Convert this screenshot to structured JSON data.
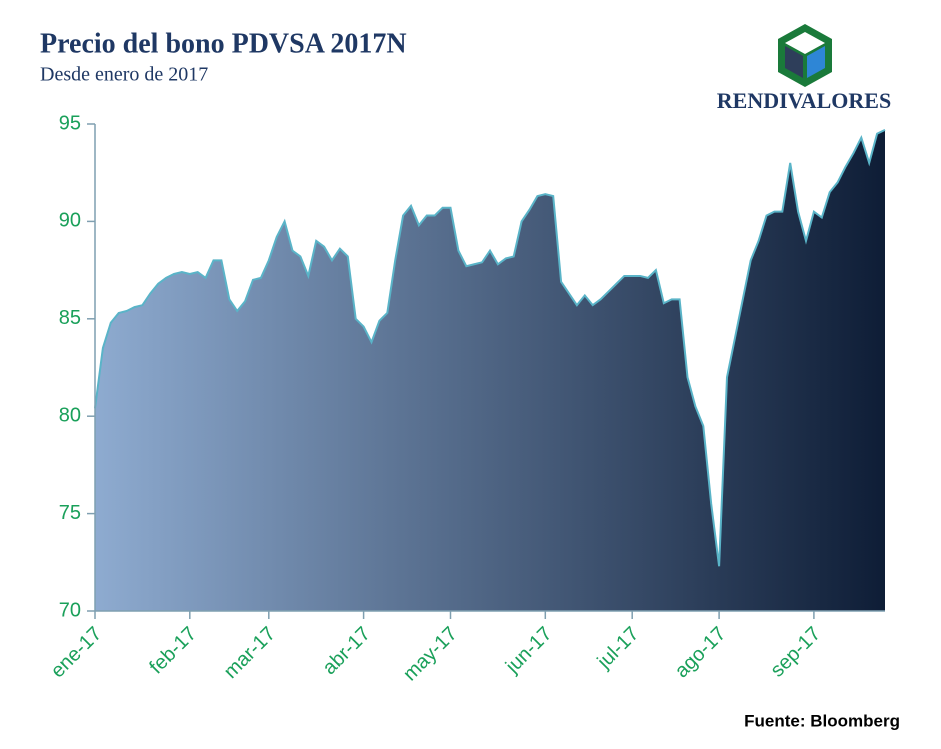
{
  "chart_data": {
    "type": "area",
    "title": "Precio del bono PDVSA 2017N",
    "subtitle": "Desde enero de 2017",
    "brand": "RENDIVALORES",
    "source": "Fuente: Bloomberg",
    "categories": [
      "ene-17",
      null,
      null,
      null,
      null,
      null,
      null,
      null,
      null,
      null,
      null,
      null,
      "feb-17",
      null,
      null,
      null,
      null,
      null,
      null,
      null,
      null,
      null,
      "mar-17",
      null,
      null,
      null,
      null,
      null,
      null,
      null,
      null,
      null,
      null,
      null,
      "abr-17",
      null,
      null,
      null,
      null,
      null,
      null,
      null,
      null,
      null,
      null,
      "may-17",
      null,
      null,
      null,
      null,
      null,
      null,
      null,
      null,
      null,
      null,
      null,
      "jun-17",
      null,
      null,
      null,
      null,
      null,
      null,
      null,
      null,
      null,
      null,
      "jul-17",
      null,
      null,
      null,
      null,
      null,
      null,
      null,
      null,
      null,
      null,
      "ago-17",
      null,
      null,
      null,
      null,
      null,
      null,
      null,
      null,
      null,
      null,
      null,
      "sep-17",
      null,
      null,
      null,
      null,
      null,
      null,
      null,
      null,
      null
    ],
    "values": [
      80.4,
      83.5,
      84.8,
      85.3,
      85.4,
      85.6,
      85.7,
      86.3,
      86.8,
      87.1,
      87.3,
      87.4,
      87.3,
      87.4,
      87.1,
      88.0,
      88.0,
      86.0,
      85.4,
      85.9,
      87.0,
      87.1,
      88.0,
      89.2,
      90.0,
      88.5,
      88.2,
      87.2,
      89.0,
      88.7,
      88.0,
      88.6,
      88.2,
      85.0,
      84.6,
      83.8,
      84.9,
      85.3,
      88.0,
      90.3,
      90.8,
      89.8,
      90.3,
      90.3,
      90.7,
      90.7,
      88.5,
      87.7,
      87.8,
      87.9,
      88.5,
      87.8,
      88.1,
      88.2,
      90.0,
      90.6,
      91.3,
      91.4,
      91.3,
      86.9,
      86.3,
      85.7,
      86.2,
      85.7,
      86.0,
      86.4,
      86.8,
      87.2,
      87.2,
      87.2,
      87.1,
      87.5,
      85.8,
      86.0,
      86.0,
      82.0,
      80.5,
      79.5,
      75.5,
      72.3,
      82.0,
      84.0,
      86.0,
      88.0,
      89.0,
      90.3,
      90.5,
      90.5,
      93.0,
      90.5,
      89.0,
      90.5,
      90.2,
      91.5,
      92.0,
      92.8,
      93.5,
      94.3,
      93.0,
      94.5,
      94.7
    ],
    "color_start": "#8eabd0",
    "color_end": "#0e1d36",
    "line_color": "#5ab4c8",
    "ylim": [
      70,
      95
    ],
    "yticks": [
      70,
      75,
      80,
      85,
      90,
      95
    ]
  }
}
